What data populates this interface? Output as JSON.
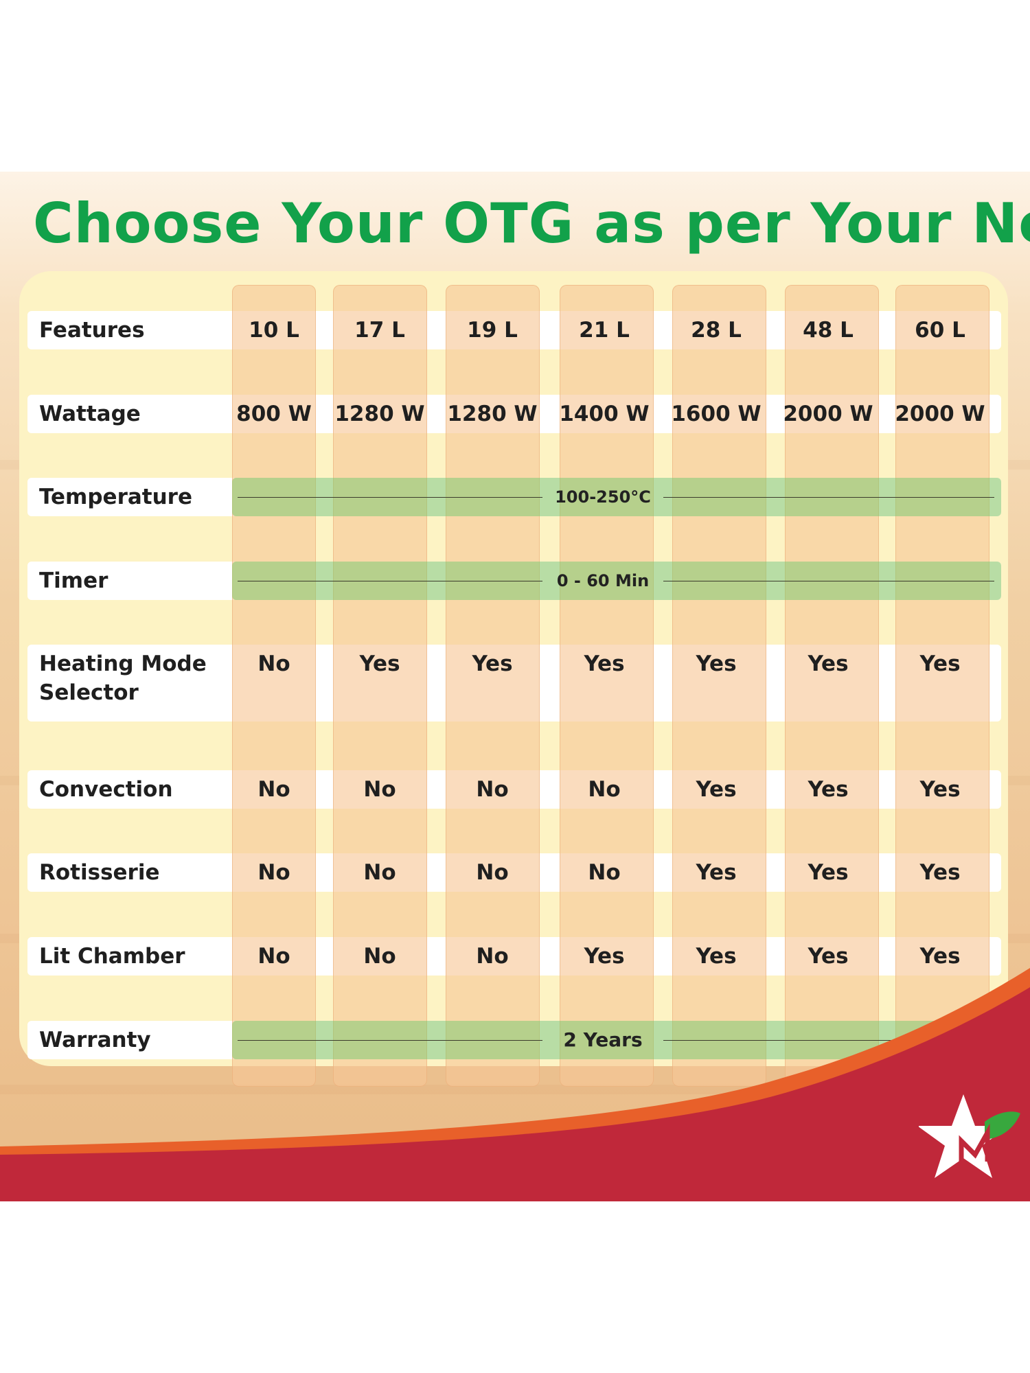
{
  "title": "Choose Your OTG as per Your Need",
  "colors": {
    "title_green": "#12a14a",
    "panel_yellow": "#fdf3c4",
    "column_peach": "#f7c696",
    "shared_band_green": "#8cc86e",
    "footer_red": "#c0283a",
    "footer_orange": "#e8602a"
  },
  "table": {
    "header_label": "Features",
    "capacities": [
      "10 L",
      "17 L",
      "19 L",
      "21 L",
      "28 L",
      "48 L",
      "60 L"
    ],
    "rows": {
      "wattage": {
        "label": "Wattage",
        "values": [
          "800 W",
          "1280 W",
          "1280 W",
          "1400 W",
          "1600 W",
          "2000 W",
          "2000 W"
        ]
      },
      "temperature": {
        "label": "Temperature",
        "value": "100-250°C"
      },
      "timer": {
        "label": "Timer",
        "value": "0 - 60 Min"
      },
      "heating_mode": {
        "label_line1": "Heating Mode",
        "label_line2": "Selector",
        "values": [
          "No",
          "Yes",
          "Yes",
          "Yes",
          "Yes",
          "Yes",
          "Yes"
        ]
      },
      "convection": {
        "label": "Convection",
        "values": [
          "No",
          "No",
          "No",
          "No",
          "Yes",
          "Yes",
          "Yes"
        ]
      },
      "rotisserie": {
        "label": "Rotisserie",
        "values": [
          "No",
          "No",
          "No",
          "No",
          "Yes",
          "Yes",
          "Yes"
        ]
      },
      "lit_chamber": {
        "label": "Lit Chamber",
        "values": [
          "No",
          "No",
          "No",
          "Yes",
          "Yes",
          "Yes",
          "Yes"
        ]
      },
      "warranty": {
        "label": "Warranty",
        "value": "2 Years"
      }
    }
  },
  "logo": {
    "icon": "star-leaf-icon"
  }
}
